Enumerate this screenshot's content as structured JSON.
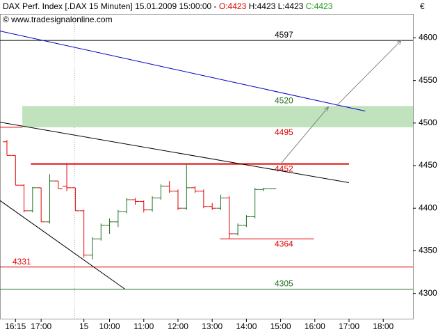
{
  "chart_data": {
    "type": "ohlc",
    "title": "DAX Perf. Index [.DAX  15 Minuten] 15.01.2009 15:00:00 -",
    "quote": {
      "open": "O:4423",
      "high": "H:4423",
      "low": "L:4423",
      "close": "C:4423"
    },
    "credit": "© www.tradesignalonline.com",
    "currency": "€",
    "up_color": "#1f6e1f",
    "down_color": "#e00000",
    "ylim": [
      4270.3,
      4628.1
    ],
    "yticks": [
      4300,
      4350,
      4400,
      4450,
      4500,
      4550,
      4600
    ],
    "xlim": [
      -0.81,
      47.48
    ],
    "xticks": [
      {
        "value": 1,
        "label": "16:15"
      },
      {
        "value": 4,
        "label": "17:00"
      },
      {
        "value": 9,
        "label": "15"
      },
      {
        "value": 12,
        "label": "10:00"
      },
      {
        "value": 16,
        "label": "11:00"
      },
      {
        "value": 20,
        "label": "12:00"
      },
      {
        "value": 24,
        "label": "13:00"
      },
      {
        "value": 28,
        "label": "14:00"
      },
      {
        "value": 32,
        "label": "15:00"
      },
      {
        "value": 36,
        "label": "16:00"
      },
      {
        "value": 40,
        "label": "17:00"
      },
      {
        "value": 44,
        "label": "18:00"
      }
    ],
    "bars": [
      [
        4478,
        4480,
        4462,
        4462
      ],
      [
        4462,
        4462,
        4427,
        4427
      ],
      [
        4427,
        4428,
        4395,
        4397
      ],
      [
        4397,
        4425,
        4395,
        4424
      ],
      [
        4424,
        4424,
        4384,
        4384
      ],
      [
        4384,
        4440,
        4382,
        4432
      ],
      [
        4432,
        4432,
        4423,
        4423
      ],
      [
        4426,
        4452,
        4420,
        4424
      ],
      [
        4424,
        4424,
        4397,
        4397
      ],
      [
        4397,
        4398,
        4342,
        4345
      ],
      [
        4345,
        4366,
        4340,
        4364
      ],
      [
        4364,
        4382,
        4362,
        4380
      ],
      [
        4380,
        4388,
        4370,
        4384
      ],
      [
        4384,
        4398,
        4378,
        4396
      ],
      [
        4396,
        4412,
        4394,
        4410
      ],
      [
        4410,
        4412,
        4404,
        4408
      ],
      [
        4408,
        4409,
        4395,
        4398
      ],
      [
        4398,
        4414,
        4396,
        4412
      ],
      [
        4412,
        4428,
        4410,
        4426
      ],
      [
        4426,
        4432,
        4418,
        4420
      ],
      [
        4420,
        4422,
        4398,
        4400
      ],
      [
        4400,
        4452,
        4398,
        4424
      ],
      [
        4424,
        4426,
        4418,
        4420
      ],
      [
        4420,
        4422,
        4400,
        4402
      ],
      [
        4402,
        4406,
        4398,
        4400
      ],
      [
        4400,
        4416,
        4398,
        4412
      ],
      [
        4412,
        4414,
        4364,
        4370
      ],
      [
        4370,
        4382,
        4368,
        4380
      ],
      [
        4380,
        4392,
        4378,
        4390
      ],
      [
        4390,
        4424,
        4388,
        4422
      ],
      [
        4422,
        4424,
        4420,
        4423
      ],
      [
        4423,
        4423,
        4423,
        4423
      ]
    ],
    "zone": {
      "low": 4495,
      "high": 4520,
      "from": 1.8,
      "to": 47.48,
      "color": "#b9dfb5"
    },
    "levels": [
      {
        "value": 4597,
        "color": "#000000",
        "from": -0.81,
        "to": 47.48
      },
      {
        "value": 4520,
        "color": "#1f6e1f"
      },
      {
        "value": 4495,
        "color": "#e00000",
        "from": -0.81,
        "to": 1.8
      },
      {
        "value": 4452,
        "color": "#e00000",
        "from": 2.8,
        "to": 40
      },
      {
        "value": 4364,
        "color": "#e00000",
        "from": 24.9,
        "to": 35.9
      },
      {
        "value": 4331,
        "color": "#e00000",
        "from": -0.81,
        "to": 47.48
      },
      {
        "value": 4305,
        "color": "#1f6e1f",
        "from": -0.81,
        "to": 47.48
      }
    ],
    "trendlines": [
      {
        "color": "#0000c0",
        "from": [
          -0.81,
          4608
        ],
        "to": [
          41.9,
          4514
        ]
      },
      {
        "color": "#000000",
        "from": [
          -0.81,
          4501
        ],
        "to": [
          40,
          4430
        ]
      },
      {
        "color": "#000000",
        "from": [
          -0.81,
          4409
        ],
        "to": [
          13.8,
          4305
        ]
      },
      {
        "color": "#808080",
        "arrow": true,
        "from": [
          32,
          4452
        ],
        "to": [
          37.6,
          4519
        ]
      },
      {
        "color": "#808080",
        "arrow": true,
        "from": [
          38.5,
          4520
        ],
        "to": [
          46.1,
          4597
        ]
      }
    ]
  }
}
